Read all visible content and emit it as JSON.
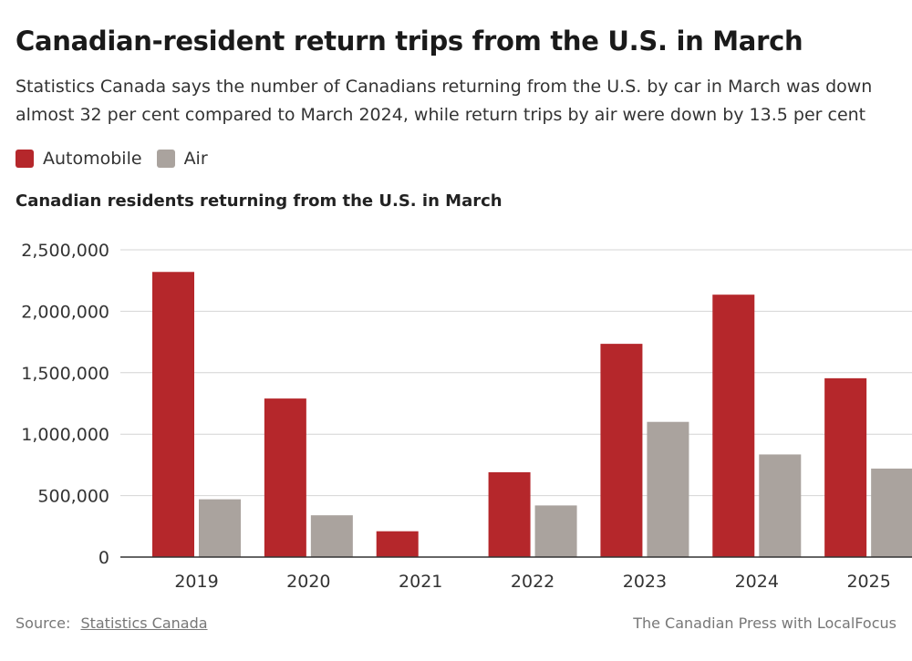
{
  "header": {
    "title": "Canadian-resident return trips from the U.S. in March",
    "subtitle_line1": "Statistics Canada says the number of Canadians returning from the U.S. by car in March was down",
    "subtitle_line2": "almost 32 per cent compared to March 2024, while return trips by air were down by 13.5 per cent"
  },
  "legend": {
    "items": [
      {
        "label": "Automobile",
        "color": "#b5272b"
      },
      {
        "label": "Air",
        "color": "#aaa39e"
      }
    ]
  },
  "chart_subtitle": "Canadian residents returning from the U.S. in March",
  "chart_data": {
    "type": "bar",
    "title": "Canadian residents returning from the U.S. in March",
    "xlabel": "",
    "ylabel": "",
    "categories": [
      "2019",
      "2020",
      "2021",
      "2022",
      "2023",
      "2024",
      "2025"
    ],
    "series": [
      {
        "name": "Automobile",
        "color": "#b5272b",
        "values": [
          2320000,
          1290000,
          210000,
          690000,
          1735000,
          2135000,
          1455000
        ]
      },
      {
        "name": "Air",
        "color": "#aaa39e",
        "values": [
          470000,
          340000,
          0,
          420000,
          1100000,
          835000,
          720000
        ]
      }
    ],
    "ylim": [
      0,
      2500000
    ],
    "yticks": [
      0,
      500000,
      1000000,
      1500000,
      2000000,
      2500000
    ],
    "ytick_labels": [
      "0",
      "500,000",
      "1,000,000",
      "1,500,000",
      "2,000,000",
      "2,500,000"
    ],
    "grid": true,
    "legend_position": "top-left"
  },
  "footer": {
    "source_prefix": "Source:",
    "source_link": "Statistics Canada",
    "credit": "The Canadian Press with LocalFocus"
  }
}
